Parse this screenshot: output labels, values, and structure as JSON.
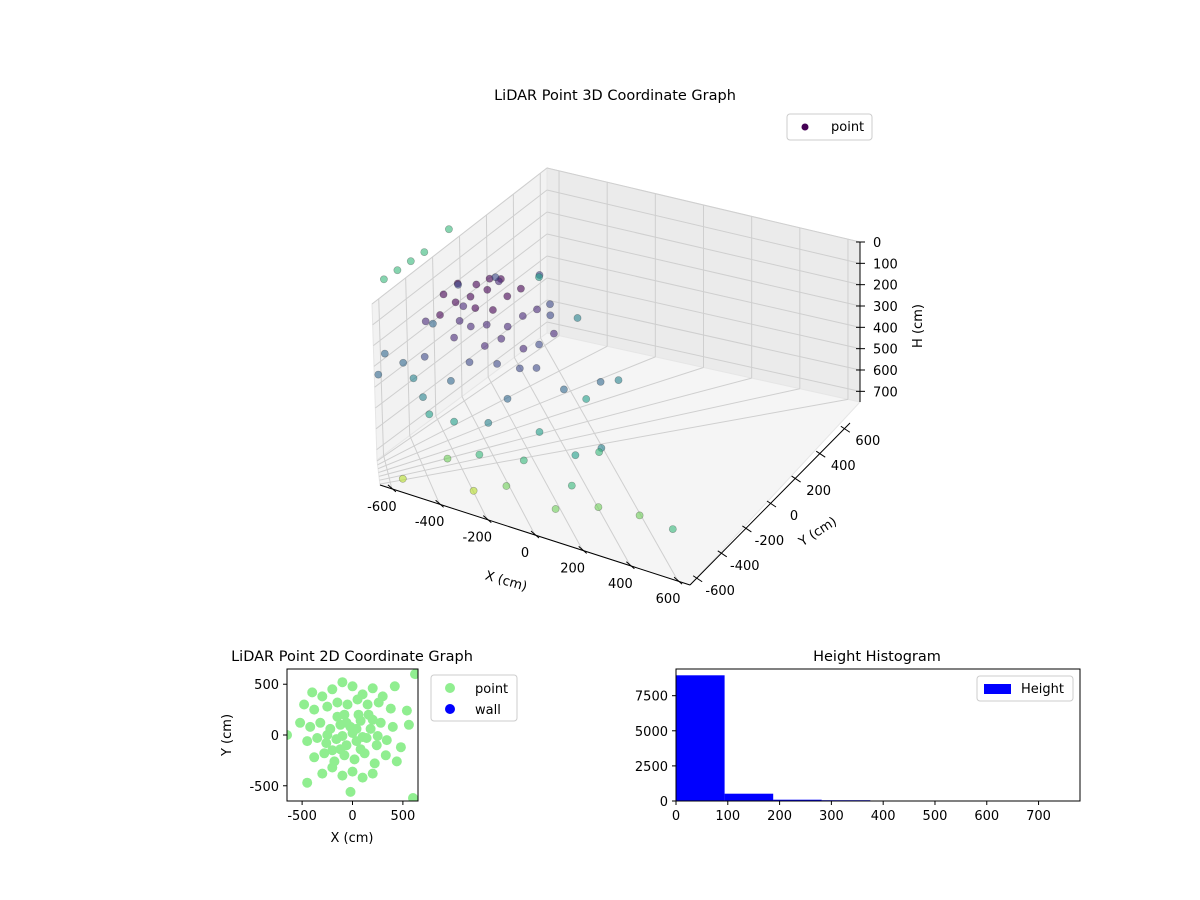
{
  "chart_data": [
    {
      "type": "scatter3d",
      "title": "LiDAR Point 3D Coordinate Graph",
      "xlabel": "X (cm)",
      "ylabel": "Y (cm)",
      "zlabel": "H (cm)",
      "xlim": [
        -650,
        650
      ],
      "ylim": [
        -650,
        650
      ],
      "zlim": [
        0,
        750
      ],
      "z_inverted": true,
      "grid": true,
      "colormap": "viridis",
      "color_range": [
        0,
        800
      ],
      "x_ticks": [
        "-600",
        "-400",
        "-200",
        "0",
        "200",
        "400",
        "600"
      ],
      "y_ticks": [
        "-600",
        "-400",
        "-200",
        "0",
        "200",
        "400",
        "600"
      ],
      "z_ticks": [
        "0",
        "100",
        "200",
        "300",
        "400",
        "500",
        "600",
        "700"
      ],
      "legend": {
        "position": "top-right",
        "entries": [
          "point"
        ]
      },
      "series": [
        {
          "name": "point",
          "points": [
            [
              -250,
              250,
              20
            ],
            [
              -200,
              150,
              30
            ],
            [
              -150,
              300,
              10
            ],
            [
              -100,
              200,
              40
            ],
            [
              -50,
              250,
              15
            ],
            [
              0,
              200,
              25
            ],
            [
              50,
              300,
              35
            ],
            [
              100,
              250,
              20
            ],
            [
              -300,
              100,
              60
            ],
            [
              -200,
              50,
              80
            ],
            [
              -100,
              100,
              50
            ],
            [
              0,
              100,
              70
            ],
            [
              100,
              150,
              45
            ],
            [
              200,
              200,
              55
            ],
            [
              -150,
              0,
              90
            ],
            [
              -50,
              50,
              110
            ],
            [
              50,
              0,
              100
            ],
            [
              150,
              50,
              85
            ],
            [
              250,
              100,
              95
            ],
            [
              -250,
              -50,
              120
            ],
            [
              -100,
              -100,
              140
            ],
            [
              0,
              -50,
              130
            ],
            [
              100,
              -100,
              150
            ],
            [
              200,
              -50,
              160
            ],
            [
              300,
              0,
              145
            ],
            [
              -200,
              -200,
              180
            ],
            [
              -50,
              -150,
              200
            ],
            [
              50,
              -200,
              190
            ],
            [
              150,
              -150,
              210
            ],
            [
              350,
              150,
              170
            ],
            [
              -350,
              300,
              140
            ],
            [
              -400,
              0,
              220
            ],
            [
              400,
              250,
              200
            ],
            [
              -300,
              -250,
              260
            ],
            [
              250,
              -250,
              240
            ],
            [
              -100,
              350,
              150
            ],
            [
              150,
              400,
              130
            ],
            [
              -500,
              200,
              280
            ],
            [
              500,
              -100,
              300
            ],
            [
              -600,
              450,
              250
            ],
            [
              600,
              300,
              350
            ],
            [
              -450,
              -400,
              320
            ],
            [
              350,
              -450,
              360
            ],
            [
              -50,
              -350,
              270
            ],
            [
              450,
              450,
              230
            ],
            [
              -150,
              -400,
              380
            ],
            [
              100,
              -350,
              400
            ],
            [
              -300,
              -350,
              420
            ],
            [
              250,
              -400,
              450
            ],
            [
              -400,
              -200,
              440
            ],
            [
              400,
              -300,
              480
            ],
            [
              0,
              -450,
              500
            ],
            [
              -200,
              -450,
              520
            ],
            [
              200,
              -500,
              540
            ],
            [
              -350,
              -500,
              560
            ],
            [
              300,
              -550,
              580
            ],
            [
              -100,
              -550,
              600
            ],
            [
              100,
              -600,
              620
            ],
            [
              -250,
              -600,
              650
            ],
            [
              500,
              -500,
              600
            ],
            [
              550,
              600,
              400
            ],
            [
              -550,
              -550,
              700
            ],
            [
              600,
              -600,
              550
            ],
            [
              -650,
              100,
              300
            ],
            [
              650,
              0,
              380
            ],
            [
              -50,
              600,
              180
            ],
            [
              200,
              550,
              220
            ],
            [
              -250,
              550,
              260
            ],
            [
              450,
              -50,
              420
            ],
            [
              -450,
              100,
              340
            ],
            [
              -600,
              600,
              -80
            ],
            [
              -500,
              600,
              -80
            ],
            [
              -400,
              600,
              -80
            ],
            [
              -300,
              600,
              -80
            ],
            [
              -100,
              650,
              -80
            ]
          ]
        }
      ]
    },
    {
      "type": "scatter",
      "title": "LiDAR Point 2D Coordinate Graph",
      "xlabel": "X (cm)",
      "ylabel": "Y (cm)",
      "xlim": [
        -650,
        650
      ],
      "ylim": [
        -650,
        650
      ],
      "x_ticks": [
        "-500",
        "0",
        "500"
      ],
      "y_ticks": [
        "-500",
        "0",
        "500"
      ],
      "legend": {
        "position": "right",
        "entries": [
          "point",
          "wall"
        ]
      },
      "series": [
        {
          "name": "point",
          "color": "#90ee90",
          "points": [
            [
              -400,
              420
            ],
            [
              -300,
              380
            ],
            [
              -200,
              450
            ],
            [
              -100,
              520
            ],
            [
              0,
              480
            ],
            [
              100,
              400
            ],
            [
              200,
              460
            ],
            [
              300,
              380
            ],
            [
              420,
              480
            ],
            [
              -480,
              300
            ],
            [
              -380,
              250
            ],
            [
              -250,
              280
            ],
            [
              -150,
              320
            ],
            [
              -50,
              300
            ],
            [
              50,
              350
            ],
            [
              150,
              300
            ],
            [
              260,
              320
            ],
            [
              380,
              260
            ],
            [
              540,
              240
            ],
            [
              -520,
              120
            ],
            [
              -420,
              80
            ],
            [
              -320,
              120
            ],
            [
              -220,
              60
            ],
            [
              -120,
              100
            ],
            [
              -20,
              80
            ],
            [
              80,
              140
            ],
            [
              180,
              60
            ],
            [
              280,
              120
            ],
            [
              400,
              80
            ],
            [
              560,
              100
            ],
            [
              -450,
              -60
            ],
            [
              -350,
              -30
            ],
            [
              -260,
              -80
            ],
            [
              -160,
              -40
            ],
            [
              -60,
              -100
            ],
            [
              40,
              -60
            ],
            [
              140,
              -30
            ],
            [
              240,
              -100
            ],
            [
              340,
              -50
            ],
            [
              480,
              -120
            ],
            [
              -380,
              -220
            ],
            [
              -280,
              -180
            ],
            [
              -180,
              -260
            ],
            [
              -80,
              -200
            ],
            [
              20,
              -240
            ],
            [
              120,
              -180
            ],
            [
              220,
              -280
            ],
            [
              330,
              -200
            ],
            [
              440,
              -260
            ],
            [
              -300,
              -380
            ],
            [
              -200,
              -320
            ],
            [
              -100,
              -400
            ],
            [
              0,
              -360
            ],
            [
              100,
              -420
            ],
            [
              200,
              -380
            ],
            [
              -450,
              -470
            ],
            [
              -20,
              -560
            ],
            [
              600,
              -620
            ],
            [
              -650,
              0
            ],
            [
              620,
              600
            ],
            [
              -80,
              200
            ],
            [
              60,
              200
            ],
            [
              -150,
              180
            ],
            [
              160,
              200
            ],
            [
              -100,
              -10
            ],
            [
              0,
              20
            ],
            [
              100,
              -20
            ],
            [
              -60,
              120
            ],
            [
              40,
              60
            ],
            [
              -120,
              -140
            ],
            [
              80,
              -140
            ],
            [
              -200,
              -150
            ],
            [
              200,
              150
            ],
            [
              -250,
              0
            ],
            [
              250,
              -10
            ]
          ]
        },
        {
          "name": "wall",
          "color": "#0000ff",
          "points": []
        }
      ]
    },
    {
      "type": "bar",
      "title": "Height Histogram",
      "xlabel": "",
      "ylabel": "",
      "xlim": [
        0,
        780
      ],
      "ylim": [
        0,
        9400
      ],
      "x_ticks": [
        "0",
        "100",
        "200",
        "300",
        "400",
        "500",
        "600",
        "700"
      ],
      "y_ticks": [
        "0",
        "2500",
        "5000",
        "7500"
      ],
      "legend": {
        "position": "top-right",
        "entries": [
          "Height"
        ]
      },
      "series": [
        {
          "name": "Height",
          "color": "#0000ff",
          "bin_edges": [
            0,
            93.75,
            187.5,
            281.25,
            375,
            468.75,
            562.5,
            656.25,
            750
          ],
          "counts": [
            8950,
            520,
            90,
            60,
            10,
            5,
            3,
            2
          ]
        }
      ]
    }
  ]
}
